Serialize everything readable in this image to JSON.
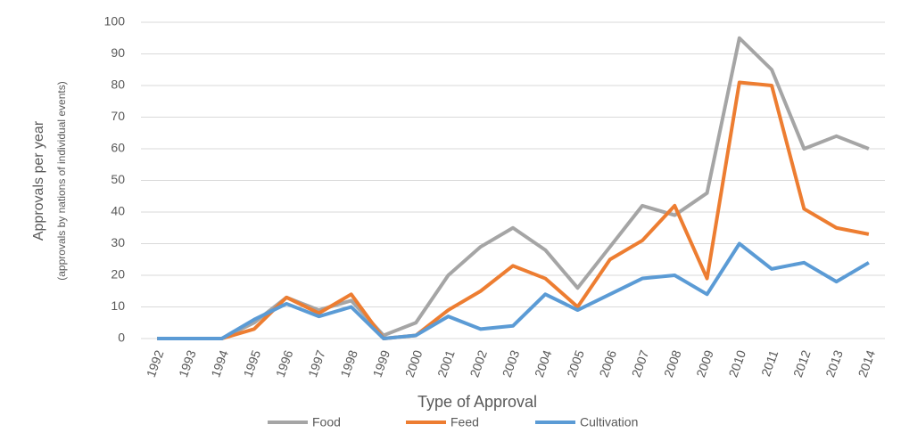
{
  "chart_data": {
    "type": "line",
    "y_label": "Approvals per year",
    "y_sublabel": "(approvals by nations of individual events)",
    "x_label": "Type of Approval",
    "categories": [
      "1992",
      "1993",
      "1994",
      "1995",
      "1996",
      "1997",
      "1998",
      "1999",
      "2000",
      "2001",
      "2002",
      "2003",
      "2004",
      "2005",
      "2006",
      "2007",
      "2008",
      "2009",
      "2010",
      "2011",
      "2012",
      "2013",
      "2014"
    ],
    "series": [
      {
        "name": "Food",
        "color": "#a5a5a5",
        "values": [
          0,
          0,
          0,
          5,
          13,
          9,
          12,
          1,
          5,
          20,
          29,
          35,
          28,
          16,
          29,
          42,
          39,
          46,
          95,
          85,
          60,
          64,
          60
        ]
      },
      {
        "name": "Feed",
        "color": "#ed7d31",
        "values": [
          0,
          0,
          0,
          3,
          13,
          8,
          14,
          0,
          1,
          9,
          15,
          23,
          19,
          10,
          25,
          31,
          42,
          19,
          81,
          80,
          41,
          35,
          33
        ]
      },
      {
        "name": "Cultivation",
        "color": "#5b9bd5",
        "values": [
          0,
          0,
          0,
          6,
          11,
          7,
          10,
          0,
          1,
          7,
          3,
          4,
          14,
          9,
          14,
          19,
          20,
          14,
          30,
          22,
          24,
          18,
          24
        ]
      }
    ],
    "ylim": [
      0,
      100
    ],
    "yticks": [
      0,
      10,
      20,
      30,
      40,
      50,
      60,
      70,
      80,
      90,
      100
    ],
    "grid": true,
    "legend": "bottom"
  }
}
